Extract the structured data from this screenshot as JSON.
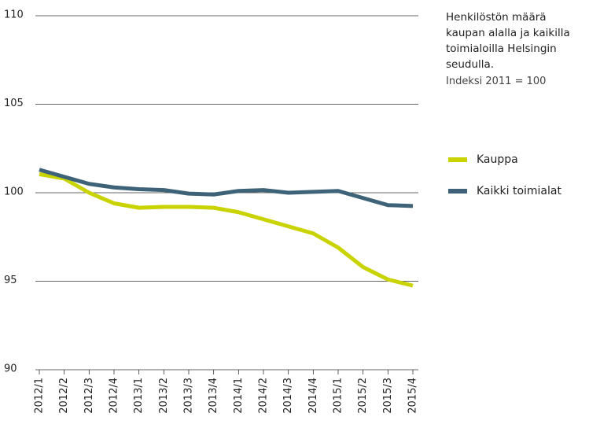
{
  "chart_data": {
    "type": "line",
    "title": "Henkilöstön määrä kaupan alalla ja kaikilla toimialoilla Helsingin seudulla.",
    "subtitle": "Indeksi 2011 = 100",
    "categories": [
      "2012/1",
      "2012/2",
      "2012/3",
      "2012/4",
      "2013/1",
      "2013/2",
      "2013/3",
      "2013/4",
      "2014/1",
      "2014/2",
      "2014/3",
      "2014/4",
      "2015/1",
      "2015/2",
      "2015/3",
      "2015/4"
    ],
    "series": [
      {
        "name": "Kauppa",
        "color": "#c8d300",
        "values": [
          101.05,
          100.8,
          100.0,
          99.4,
          99.15,
          99.2,
          99.2,
          99.15,
          98.9,
          98.5,
          98.1,
          97.7,
          96.9,
          95.8,
          95.1,
          94.75
        ]
      },
      {
        "name": "Kaikki toimialat",
        "color": "#3e6379",
        "values": [
          101.3,
          100.9,
          100.5,
          100.3,
          100.2,
          100.15,
          99.95,
          99.9,
          100.1,
          100.15,
          100.0,
          100.05,
          100.1,
          99.7,
          99.3,
          99.25
        ]
      }
    ],
    "ylim": [
      90,
      110
    ],
    "yticks": [
      90,
      95,
      100,
      105,
      110
    ],
    "grid": true
  }
}
